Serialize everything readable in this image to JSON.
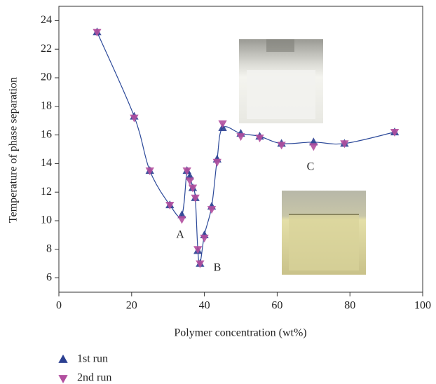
{
  "chart_data": {
    "type": "scatter",
    "x_label": "Polymer concentration (wt%)",
    "y_label": "Temperature of phase separation",
    "xlim": [
      0,
      100
    ],
    "xticks": [
      0,
      20,
      40,
      60,
      80,
      100
    ],
    "ylim": [
      5,
      25
    ],
    "yticks": [
      6,
      8,
      10,
      12,
      14,
      16,
      18,
      20,
      22,
      24
    ],
    "legend": "below",
    "line_color": "#2d4a9a",
    "annotations": [
      "A",
      "B",
      "C"
    ],
    "series": [
      {
        "name": "1st run",
        "color": "#2b3f91",
        "marker": "triangle-up",
        "x": [
          10.5,
          20.7,
          25,
          30.5,
          33.8,
          35.2,
          36,
          36.8,
          37.5,
          38.2,
          38.8,
          40,
          42,
          43.5,
          45,
          50,
          55.2,
          61.2,
          70,
          78.5,
          92.3
        ],
        "values": [
          23.2,
          17.3,
          13.5,
          11.1,
          10.4,
          13.5,
          13.1,
          12.3,
          11.6,
          7.9,
          7.0,
          9.0,
          11.0,
          14.3,
          16.5,
          16.1,
          15.9,
          15.4,
          15.5,
          15.4,
          16.2
        ]
      },
      {
        "name": "2nd run",
        "color": "#b24f9f",
        "marker": "triangle-down",
        "x": [
          10.5,
          20.7,
          25,
          30.5,
          33.8,
          35.2,
          36,
          36.8,
          37.5,
          38.2,
          38.8,
          40,
          42,
          43.5,
          45,
          50,
          55.2,
          61.2,
          70,
          78.5,
          92.3
        ],
        "values": [
          23.2,
          17.2,
          13.5,
          11.1,
          10.1,
          13.5,
          12.8,
          12.3,
          11.6,
          8.0,
          7.0,
          8.8,
          10.8,
          14.1,
          16.8,
          15.9,
          15.8,
          15.3,
          15.2,
          15.4,
          16.2
        ]
      }
    ]
  }
}
